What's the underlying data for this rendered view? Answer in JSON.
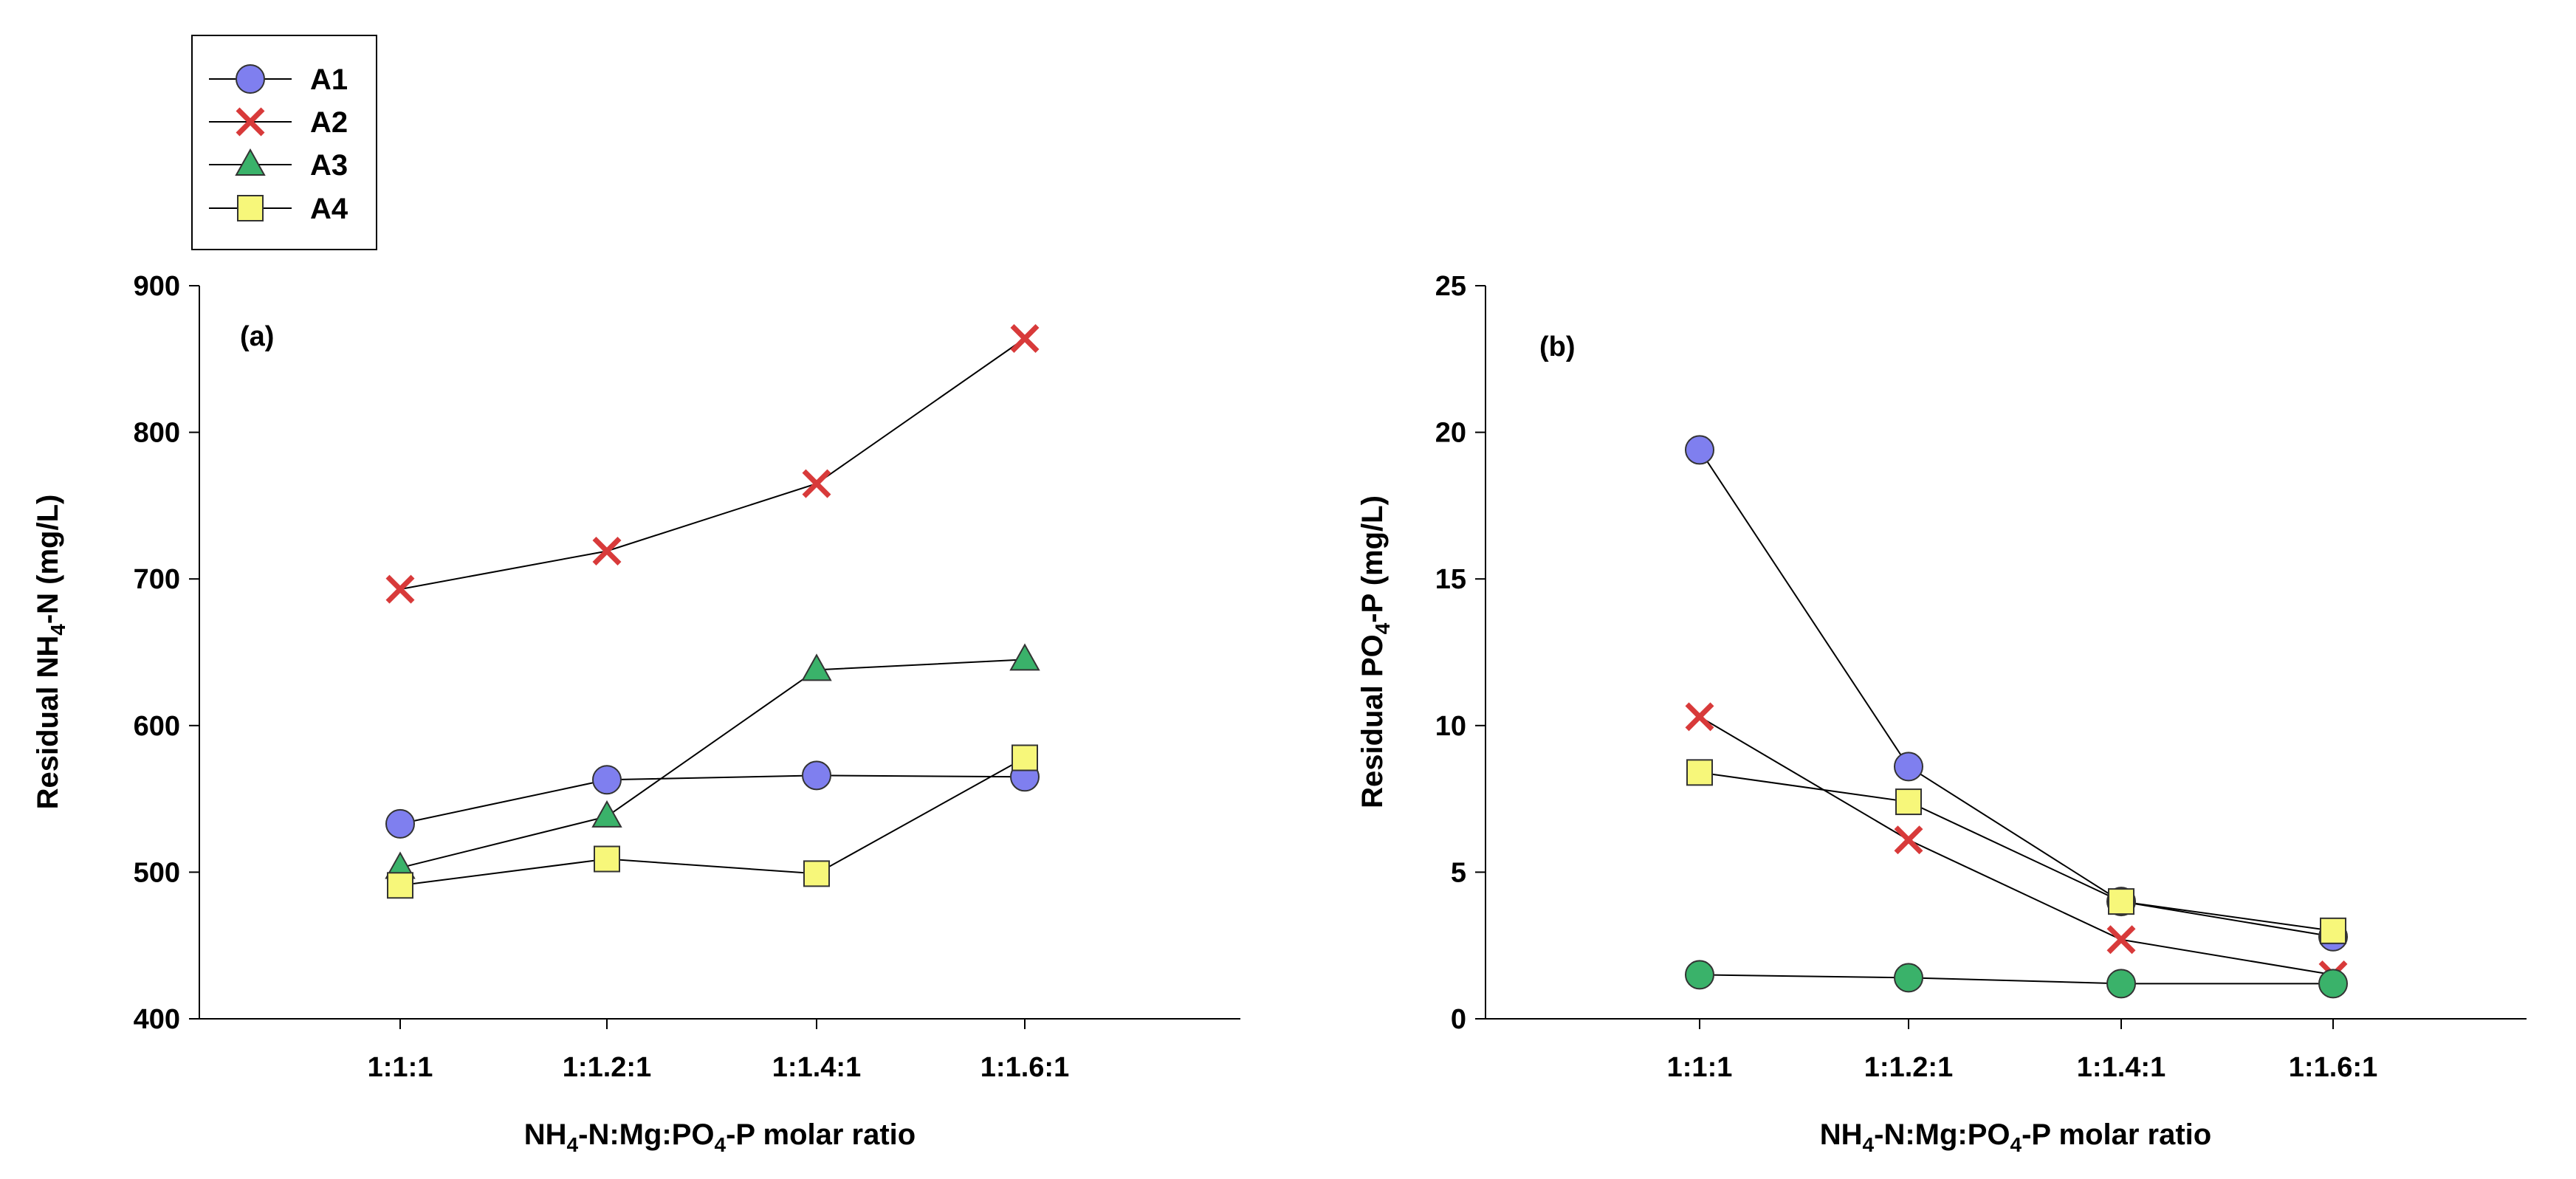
{
  "colors": {
    "A1": "#7f7fef",
    "A2": "#d83a3a",
    "A3": "#3ab26a",
    "A4": "#f7f77a",
    "axis": "#000000",
    "line": "#000000"
  },
  "legend": {
    "entries": [
      {
        "key": "A1",
        "label": "A1",
        "marker": "circle"
      },
      {
        "key": "A2",
        "label": "A2",
        "marker": "x"
      },
      {
        "key": "A3",
        "label": "A3",
        "marker": "triangle"
      },
      {
        "key": "A4",
        "label": "A4",
        "marker": "square"
      }
    ]
  },
  "chart_data": [
    {
      "type": "line",
      "panel_label": "(a)",
      "categories": [
        "1:1:1",
        "1:1.2:1",
        "1:1.4:1",
        "1:1.6:1"
      ],
      "xlabel": {
        "pre": "NH",
        "sub1": "4",
        "mid": "-N:Mg:PO",
        "sub2": "4",
        "post": "-P molar ratio"
      },
      "ylabel": {
        "pre": "Residual NH",
        "sub1": "4",
        "post": "-N (mg/L)"
      },
      "ylim": [
        400,
        900
      ],
      "yticks": [
        400,
        500,
        600,
        700,
        800,
        900
      ],
      "series": [
        {
          "name": "A1",
          "marker": "circle",
          "values": [
            533,
            563,
            566,
            565
          ]
        },
        {
          "name": "A2",
          "marker": "x",
          "values": [
            693,
            719,
            765,
            864
          ]
        },
        {
          "name": "A3",
          "marker": "triangle",
          "values": [
            503,
            538,
            638,
            645
          ]
        },
        {
          "name": "A4",
          "marker": "square",
          "values": [
            491,
            509,
            499,
            578
          ]
        }
      ]
    },
    {
      "type": "line",
      "panel_label": "(b)",
      "categories": [
        "1:1:1",
        "1:1.2:1",
        "1:1.4:1",
        "1:1.6:1"
      ],
      "xlabel": {
        "pre": "NH",
        "sub1": "4",
        "mid": "-N:Mg:PO",
        "sub2": "4",
        "post": "-P molar ratio"
      },
      "ylabel": {
        "pre": "Residual PO",
        "sub1": "4",
        "post": "-P (mg/L)"
      },
      "ylim": [
        0,
        25
      ],
      "yticks": [
        0,
        5,
        10,
        15,
        20,
        25
      ],
      "series": [
        {
          "name": "A1",
          "marker": "circle",
          "values": [
            19.4,
            8.6,
            4.0,
            2.8
          ]
        },
        {
          "name": "A2",
          "marker": "x",
          "values": [
            10.3,
            6.1,
            2.7,
            1.5
          ]
        },
        {
          "name": "A3",
          "marker": "circle",
          "color_key": "A3",
          "values": [
            1.5,
            1.4,
            1.2,
            1.2
          ]
        },
        {
          "name": "A4",
          "marker": "square",
          "values": [
            8.4,
            7.4,
            4.0,
            3.0
          ]
        }
      ]
    }
  ]
}
